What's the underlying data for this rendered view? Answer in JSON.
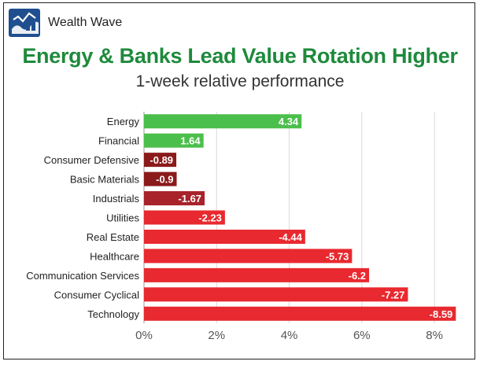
{
  "header": {
    "brand_name": "Wealth Wave",
    "logo_icon": "wave-logo-icon"
  },
  "colors": {
    "title_green": "#1e8a3c",
    "positive": "#4bbf4b",
    "mild_negative": "#8b1a1a",
    "negative": "#e8292f"
  },
  "chart_data": {
    "type": "bar",
    "orientation": "horizontal",
    "title": "Energy & Banks Lead Value Rotation Higher",
    "subtitle": "1-week relative performance",
    "categories": [
      "Energy",
      "Financial",
      "Consumer Defensive",
      "Basic Materials",
      "Industrials",
      "Utilities",
      "Real Estate",
      "Healthcare",
      "Communication Services",
      "Consumer Cyclical",
      "Technology"
    ],
    "values": [
      4.34,
      1.64,
      -0.89,
      -0.9,
      -1.67,
      -2.23,
      -4.44,
      -5.73,
      -6.2,
      -7.27,
      -8.59
    ],
    "value_labels": [
      "4.34",
      "1.64",
      "-0.89",
      "-0.9",
      "-1.67",
      "-2.23",
      "-4.44",
      "-5.73",
      "-6.2",
      "-7.27",
      "-8.59"
    ],
    "bar_colors": [
      "#4bbf4b",
      "#4bbf4b",
      "#8b1a1a",
      "#8b1a1a",
      "#a8232a",
      "#e8292f",
      "#e8292f",
      "#e8292f",
      "#e8292f",
      "#e8292f",
      "#e8292f"
    ],
    "x_axis": {
      "min": 0,
      "max": 8.8,
      "ticks": [
        0,
        2,
        4,
        6,
        8
      ],
      "tick_labels": [
        "0%",
        "2%",
        "4%",
        "6%",
        "8%"
      ]
    },
    "bar_length": "absolute value",
    "grid": true,
    "legend": "none"
  }
}
